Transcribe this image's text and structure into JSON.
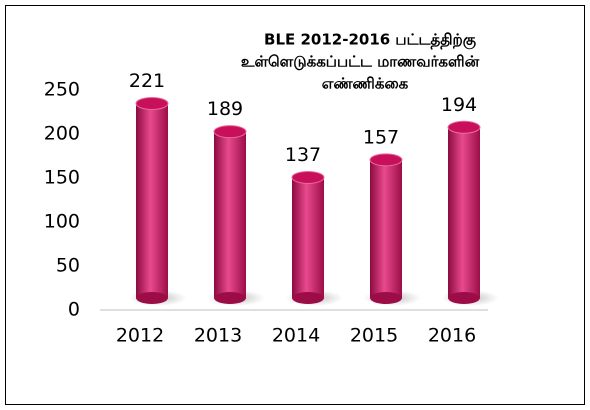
{
  "chart_data": {
    "type": "bar",
    "title": [
      "BLE 2012-2016 பட்டத்திற்கு",
      "உள்ளெடுக்கப்பட்ட  மாணவர்களின்",
      "எண்ணிக்கை"
    ],
    "categories": [
      "2012",
      "2013",
      "2014",
      "2015",
      "2016"
    ],
    "values": [
      221,
      189,
      137,
      157,
      194
    ],
    "color": "#c8105a",
    "ylim": [
      0,
      250
    ],
    "yticks": [
      0,
      50,
      100,
      150,
      200,
      250
    ],
    "grid": false
  }
}
